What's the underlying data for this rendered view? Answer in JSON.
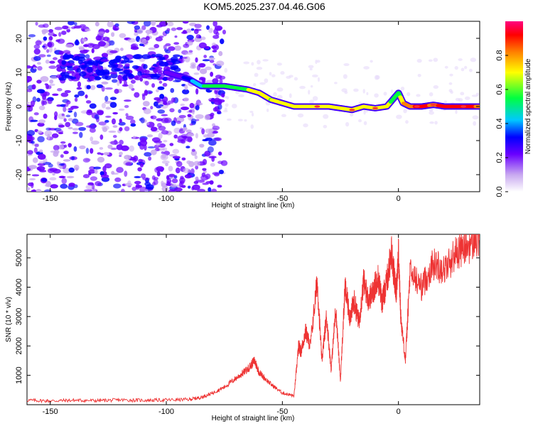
{
  "title": "KOM5.2025.237.04.46.G06",
  "spectrogram": {
    "xlabel": "Height of straight line (km)",
    "ylabel": "Frequency (Hz)",
    "xlim": [
      -160,
      35
    ],
    "ylim": [
      -25,
      25
    ],
    "xticks": [
      -150,
      -100,
      -50,
      0
    ],
    "yticks": [
      -20,
      -10,
      0,
      10,
      20
    ],
    "colorbar": {
      "label": "Normalized spectral amplitude",
      "ticks": [
        0.0,
        0.2,
        0.4,
        0.6,
        0.8
      ]
    }
  },
  "chart_data": [
    {
      "type": "heatmap",
      "title": "KOM5.2025.237.04.46.G06",
      "xlabel": "Height of straight line (km)",
      "ylabel": "Frequency (Hz)",
      "xlim": [
        -160,
        35
      ],
      "ylim": [
        -25,
        25
      ],
      "ridge": {
        "x": [
          -100,
          -95,
          -90,
          -85,
          -80,
          -75,
          -70,
          -65,
          -60,
          -55,
          -50,
          -45,
          -40,
          -35,
          -30,
          -25,
          -20,
          -15,
          -10,
          -5,
          0,
          2,
          5,
          10,
          15,
          20,
          25,
          30,
          35
        ],
        "y": [
          10,
          9,
          8,
          6,
          6,
          6,
          5.5,
          5,
          4,
          2,
          1,
          0,
          0,
          0,
          0,
          -0.5,
          -1,
          0,
          -0.5,
          0,
          4,
          1,
          0,
          0,
          0.5,
          0,
          0,
          0,
          0
        ],
        "amplitude": [
          0.15,
          0.15,
          0.3,
          0.4,
          0.5,
          0.5,
          0.55,
          0.55,
          0.6,
          0.55,
          0.6,
          0.6,
          0.65,
          0.65,
          0.6,
          0.6,
          0.6,
          0.6,
          0.65,
          0.6,
          0.45,
          0.7,
          0.8,
          0.85,
          0.8,
          0.85,
          0.85,
          0.85,
          0.8
        ]
      }
    },
    {
      "type": "line",
      "xlabel": "Height of straight line (km)",
      "ylabel": "SNR (10 * v/v)",
      "xlim": [
        -160,
        35
      ],
      "ylim": [
        0,
        5800
      ],
      "xticks": [
        -150,
        -100,
        -50,
        0
      ],
      "yticks": [
        1000,
        2000,
        3000,
        4000,
        5000
      ],
      "color": "#ee3333",
      "x": [
        -160,
        -150,
        -140,
        -130,
        -120,
        -110,
        -100,
        -90,
        -85,
        -80,
        -75,
        -70,
        -65,
        -62,
        -60,
        -55,
        -50,
        -45,
        -43,
        -42,
        -40,
        -38,
        -35,
        -33,
        -31,
        -29,
        -27,
        -25,
        -23,
        -21,
        -19,
        -17,
        -15,
        -13,
        -11,
        -9,
        -7,
        -5,
        -3,
        -1,
        0,
        1,
        3,
        5,
        10,
        15,
        20,
        25,
        30,
        35
      ],
      "y": [
        150,
        130,
        150,
        140,
        160,
        150,
        160,
        180,
        250,
        400,
        600,
        900,
        1200,
        1500,
        1100,
        700,
        400,
        300,
        2000,
        1800,
        2500,
        2000,
        4200,
        1500,
        3000,
        1200,
        3300,
        800,
        4000,
        3000,
        3500,
        2800,
        4200,
        3600,
        3800,
        4400,
        3500,
        4200,
        5200,
        3800,
        5200,
        3000,
        1500,
        4500,
        4000,
        4800,
        4600,
        5200,
        5400,
        5600
      ]
    }
  ]
}
